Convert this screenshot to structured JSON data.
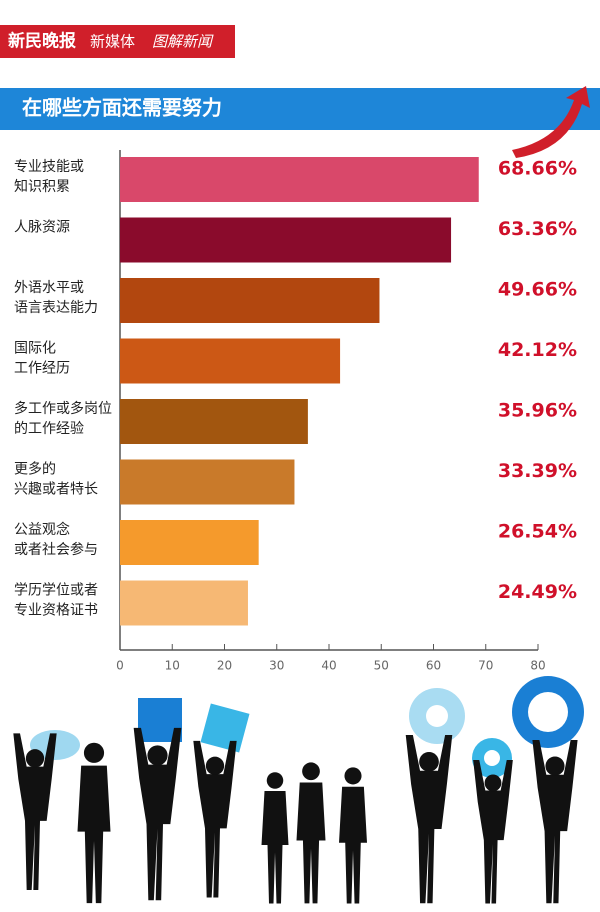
{
  "header": {
    "brand": "新民晚报",
    "section": "新媒体",
    "label": "图解新闻"
  },
  "chart_data": {
    "type": "hbar",
    "title": "在哪些方面还需要努力",
    "categories": [
      [
        "专业技能或",
        "知识积累"
      ],
      [
        "人脉资源"
      ],
      [
        "外语水平或",
        "语言表达能力"
      ],
      [
        "国际化",
        "工作经历"
      ],
      [
        "多工作或多岗位",
        "的工作经验"
      ],
      [
        "更多的",
        "兴趣或者特长"
      ],
      [
        "公益观念",
        "或者社会参与"
      ],
      [
        "学历学位或者",
        "专业资格证书"
      ]
    ],
    "values": [
      68.66,
      63.36,
      49.66,
      42.12,
      35.96,
      33.39,
      26.54,
      24.49
    ],
    "value_labels": [
      "68.66%",
      "63.36%",
      "49.66%",
      "42.12%",
      "35.96%",
      "33.39%",
      "26.54%",
      "24.49%"
    ],
    "colors": [
      "#d9486a",
      "#8a0b2c",
      "#b2470f",
      "#cc5815",
      "#a2560f",
      "#c97a2a",
      "#f59a2c",
      "#f6b874"
    ],
    "xlim": [
      0,
      80
    ],
    "xticks": [
      0,
      10,
      20,
      30,
      40,
      50,
      60,
      70,
      80
    ]
  }
}
